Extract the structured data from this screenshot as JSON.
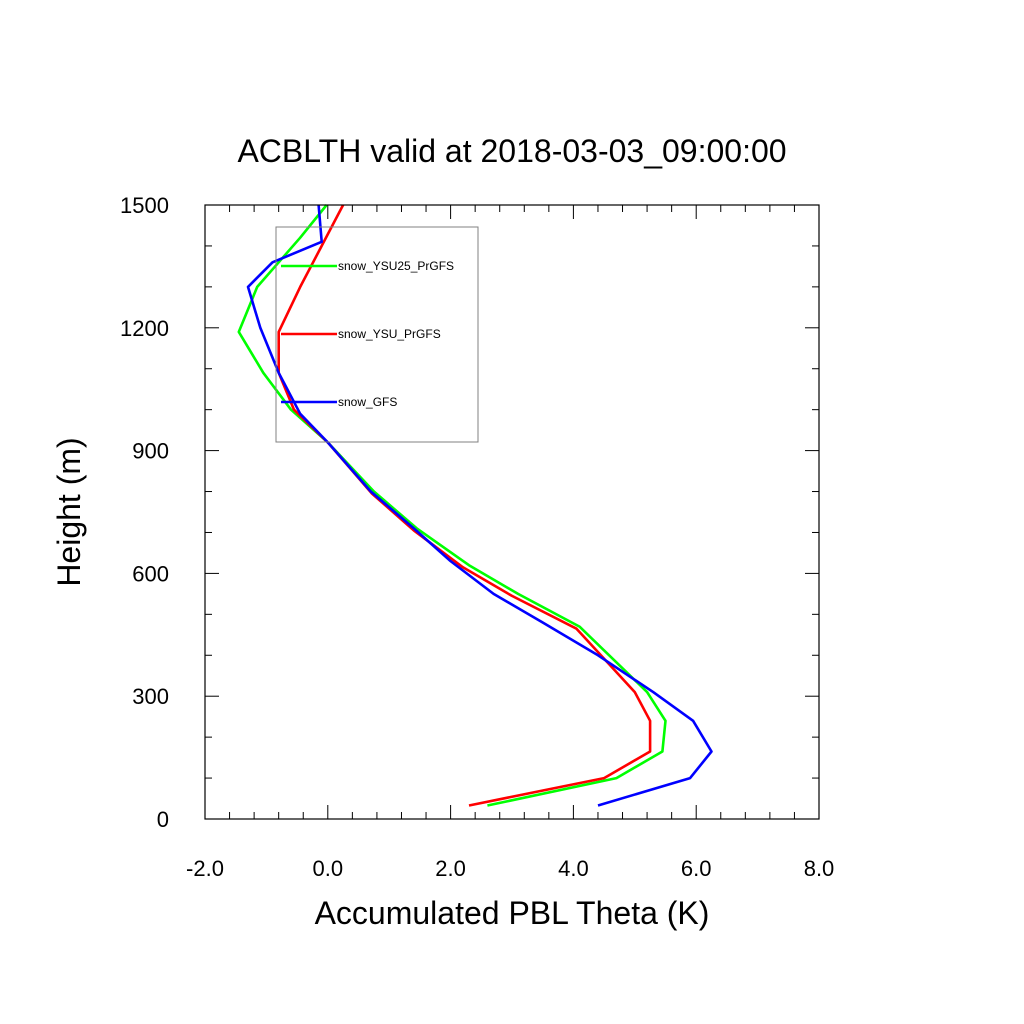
{
  "chart_data": {
    "type": "line",
    "title": "ACBLTH valid at 2018-03-03_09:00:00",
    "xlabel": "Accumulated PBL Theta (K)",
    "ylabel": "Height (m)",
    "xlim": [
      -2.0,
      8.0
    ],
    "ylim": [
      0,
      1500
    ],
    "x_major_ticks": [
      -2.0,
      0.0,
      2.0,
      4.0,
      6.0,
      8.0
    ],
    "x_tick_labels": [
      "-2.0",
      "0.0",
      "2.0",
      "4.0",
      "6.0",
      "8.0"
    ],
    "x_minor_step": 0.4,
    "y_major_ticks": [
      0,
      300,
      600,
      900,
      1200,
      1500
    ],
    "y_tick_labels": [
      "0",
      "300",
      "600",
      "900",
      "1200",
      "1500"
    ],
    "y_minor_step": 100,
    "grid": false,
    "legend": "top-left",
    "series": [
      {
        "name": "snow_YSU25_PrGFS",
        "color": "#00ff00",
        "points": [
          [
            2.6,
            33
          ],
          [
            4.7,
            100
          ],
          [
            5.45,
            165
          ],
          [
            5.5,
            240
          ],
          [
            5.2,
            310
          ],
          [
            4.1,
            470
          ],
          [
            3.1,
            550
          ],
          [
            2.3,
            620
          ],
          [
            1.45,
            710
          ],
          [
            0.75,
            800
          ],
          [
            0.0,
            920
          ],
          [
            -0.6,
            1000
          ],
          [
            -1.05,
            1090
          ],
          [
            -1.45,
            1190
          ],
          [
            -1.15,
            1300
          ],
          [
            -0.8,
            1360
          ],
          [
            -0.45,
            1420
          ],
          [
            -0.02,
            1500
          ]
        ]
      },
      {
        "name": "snow_YSU_PrGFS",
        "color": "#ff0000",
        "points": [
          [
            2.3,
            33
          ],
          [
            4.5,
            100
          ],
          [
            5.25,
            165
          ],
          [
            5.25,
            240
          ],
          [
            5.0,
            310
          ],
          [
            4.05,
            465
          ],
          [
            3.0,
            545
          ],
          [
            2.2,
            615
          ],
          [
            1.4,
            705
          ],
          [
            0.72,
            795
          ],
          [
            0.0,
            920
          ],
          [
            -0.55,
            1000
          ],
          [
            -0.8,
            1090
          ],
          [
            -0.8,
            1190
          ],
          [
            -0.45,
            1300
          ],
          [
            -0.1,
            1400
          ],
          [
            0.25,
            1500
          ]
        ]
      },
      {
        "name": "snow_GFS",
        "color": "#0000ff",
        "points": [
          [
            4.4,
            33
          ],
          [
            5.9,
            100
          ],
          [
            6.25,
            165
          ],
          [
            5.95,
            240
          ],
          [
            5.3,
            310
          ],
          [
            4.4,
            400
          ],
          [
            3.5,
            480
          ],
          [
            2.7,
            550
          ],
          [
            2.0,
            630
          ],
          [
            1.4,
            710
          ],
          [
            0.7,
            800
          ],
          [
            0.0,
            920
          ],
          [
            -0.45,
            990
          ],
          [
            -0.8,
            1090
          ],
          [
            -1.1,
            1200
          ],
          [
            -1.3,
            1300
          ],
          [
            -0.9,
            1360
          ],
          [
            -0.1,
            1410
          ],
          [
            -0.15,
            1500
          ]
        ]
      }
    ]
  }
}
